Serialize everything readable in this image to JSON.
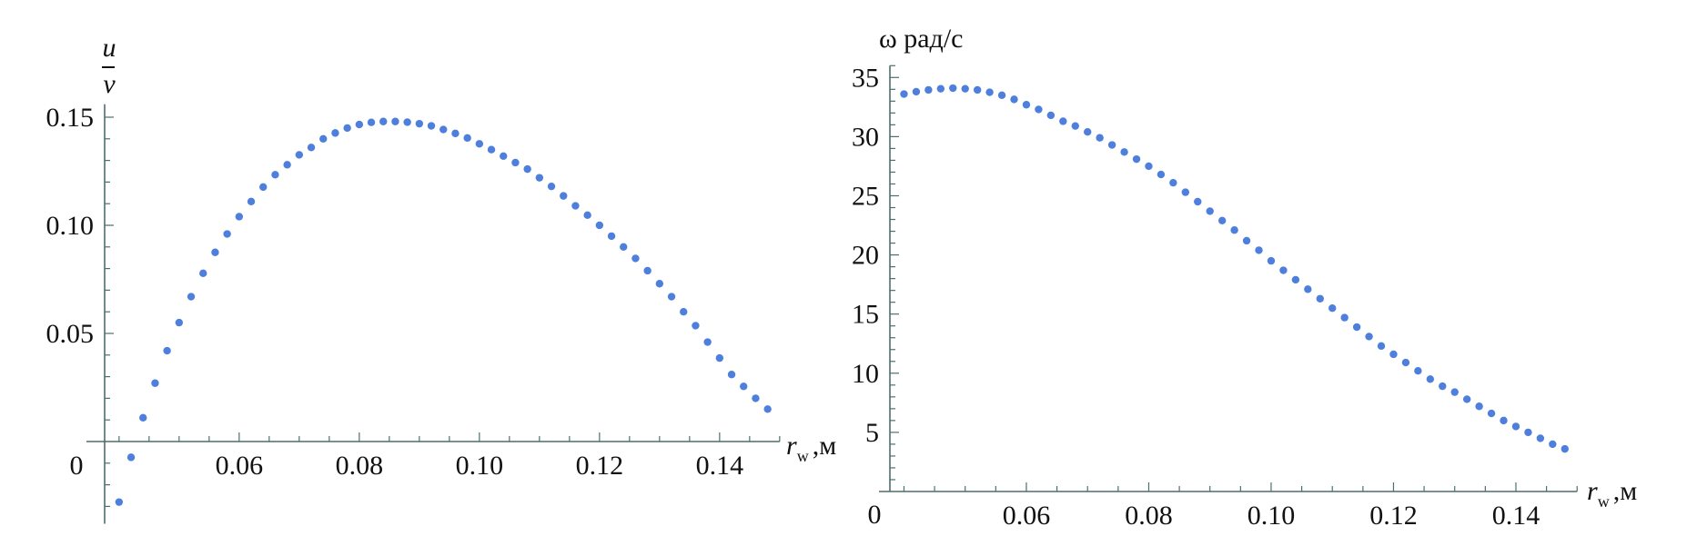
{
  "chart_data": [
    {
      "type": "scatter",
      "ylabel_numerator": "u",
      "ylabel_denominator": "v",
      "xlabel_symbol": "r",
      "xlabel_subscript": "w",
      "xlabel_unit": ",м",
      "xlim": [
        0.0376,
        0.15
      ],
      "ylim": [
        -0.038,
        0.156
      ],
      "origin_label": "0",
      "x_ticks": [
        0.06,
        0.08,
        0.1,
        0.12,
        0.14
      ],
      "x_tick_labels": [
        "0.06",
        "0.08",
        "0.10",
        "0.12",
        "0.14"
      ],
      "y_ticks": [
        0.05,
        0.1,
        0.15
      ],
      "y_tick_labels": [
        "0.05",
        "0.10",
        "0.15"
      ],
      "x_minor_step": 0.005,
      "y_minor_step": 0.01,
      "grid": false,
      "marker_color": "#4f7fdc",
      "axis_color": "#4d6f6c",
      "x": [
        0.04,
        0.042,
        0.044,
        0.046,
        0.048,
        0.05,
        0.052,
        0.054,
        0.056,
        0.058,
        0.06,
        0.062,
        0.064,
        0.066,
        0.068,
        0.07,
        0.072,
        0.074,
        0.076,
        0.078,
        0.08,
        0.082,
        0.084,
        0.086,
        0.088,
        0.09,
        0.092,
        0.094,
        0.096,
        0.098,
        0.1,
        0.102,
        0.104,
        0.106,
        0.108,
        0.11,
        0.112,
        0.114,
        0.116,
        0.118,
        0.12,
        0.122,
        0.124,
        0.126,
        0.128,
        0.13,
        0.132,
        0.134,
        0.136,
        0.138,
        0.14,
        0.142,
        0.144,
        0.146,
        0.148
      ],
      "y": [
        -0.028,
        -0.0073,
        0.011,
        0.027,
        0.042,
        0.055,
        0.067,
        0.0778,
        0.0875,
        0.096,
        0.104,
        0.111,
        0.1177,
        0.1234,
        0.128,
        0.1326,
        0.136,
        0.14,
        0.1427,
        0.145,
        0.1466,
        0.1476,
        0.148,
        0.148,
        0.1477,
        0.147,
        0.146,
        0.1443,
        0.1425,
        0.1404,
        0.1377,
        0.135,
        0.132,
        0.129,
        0.126,
        0.122,
        0.118,
        0.1136,
        0.109,
        0.1047,
        0.1,
        0.095,
        0.09,
        0.0847,
        0.079,
        0.073,
        0.067,
        0.06,
        0.0536,
        0.046,
        0.0386,
        0.031,
        0.0255,
        0.02,
        0.015
      ]
    },
    {
      "type": "scatter",
      "ylabel": "ω рад/с",
      "xlabel_symbol": "r",
      "xlabel_subscript": "w",
      "xlabel_unit": ",м",
      "xlim": [
        0.0377,
        0.15
      ],
      "ylim": [
        0,
        36
      ],
      "origin_label": "0",
      "x_ticks": [
        0.06,
        0.08,
        0.1,
        0.12,
        0.14
      ],
      "x_tick_labels": [
        "0.06",
        "0.08",
        "0.10",
        "0.12",
        "0.14"
      ],
      "y_ticks": [
        5,
        10,
        15,
        20,
        25,
        30,
        35
      ],
      "y_tick_labels": [
        "5",
        "10",
        "15",
        "20",
        "25",
        "30",
        "35"
      ],
      "x_minor_step": 0.005,
      "y_minor_step": 1,
      "grid": false,
      "marker_color": "#4f7fdc",
      "axis_color": "#4d6f6c",
      "x": [
        0.04,
        0.042,
        0.044,
        0.046,
        0.048,
        0.05,
        0.052,
        0.054,
        0.056,
        0.058,
        0.06,
        0.062,
        0.064,
        0.066,
        0.068,
        0.07,
        0.072,
        0.074,
        0.076,
        0.078,
        0.08,
        0.082,
        0.084,
        0.086,
        0.088,
        0.09,
        0.092,
        0.094,
        0.096,
        0.098,
        0.1,
        0.102,
        0.104,
        0.106,
        0.108,
        0.11,
        0.112,
        0.114,
        0.116,
        0.118,
        0.12,
        0.122,
        0.124,
        0.126,
        0.128,
        0.13,
        0.132,
        0.134,
        0.136,
        0.138,
        0.14,
        0.142,
        0.144,
        0.146,
        0.148
      ],
      "y": [
        33.6,
        33.8,
        33.95,
        34.05,
        34.1,
        34.05,
        33.95,
        33.75,
        33.5,
        33.15,
        32.7,
        32.3,
        31.8,
        31.3,
        30.9,
        30.4,
        29.9,
        29.3,
        28.7,
        28.1,
        27.5,
        26.8,
        26.1,
        25.3,
        24.5,
        23.7,
        22.9,
        22.1,
        21.2,
        20.4,
        19.5,
        18.7,
        17.9,
        17.1,
        16.3,
        15.5,
        14.7,
        13.9,
        13.1,
        12.3,
        11.6,
        10.9,
        10.2,
        9.5,
        8.9,
        8.4,
        7.8,
        7.2,
        6.6,
        6.0,
        5.5,
        5.0,
        4.5,
        4.0,
        3.6
      ]
    }
  ]
}
